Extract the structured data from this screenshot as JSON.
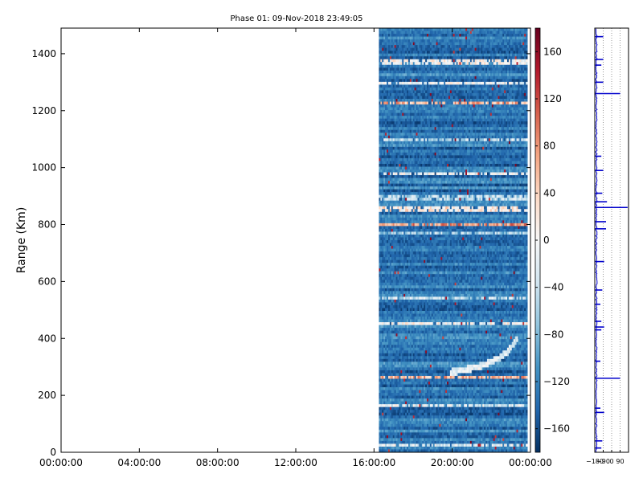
{
  "chart_data": [
    {
      "type": "heatmap",
      "title": "Phase 01: 09-Nov-2018 23:49:05",
      "xlabel": "",
      "ylabel": "Range (Km)",
      "x_ticks": [
        "00:00:00",
        "04:00:00",
        "08:00:00",
        "12:00:00",
        "16:00:00",
        "20:00:00",
        "00:00:00"
      ],
      "xlim_hours": [
        0,
        24
      ],
      "data_start_hour": 16.25,
      "ylim": [
        0,
        1490
      ],
      "y_ticks": [
        0,
        200,
        400,
        600,
        800,
        1000,
        1200,
        1400
      ],
      "colormap": "RdBu_r",
      "baseline_value": -130,
      "colorbar": {
        "range": [
          -180,
          180
        ],
        "ticks": [
          -160,
          -120,
          -80,
          -40,
          0,
          40,
          80,
          120,
          160
        ],
        "tick_labels": [
          "−160",
          "−120",
          "−80",
          "−40",
          "0",
          "40",
          "80",
          "120",
          "160"
        ],
        "colors": [
          "#053061",
          "#2166ac",
          "#4393c3",
          "#92c5de",
          "#d1e5f0",
          "#f7f7f7",
          "#fddbc7",
          "#f4a582",
          "#d6604d",
          "#b2182b",
          "#67001f"
        ]
      },
      "bands": [
        {
          "range_km": 1370,
          "value": 0
        },
        {
          "range_km": 1295,
          "value": -10
        },
        {
          "range_km": 1230,
          "value": 60
        },
        {
          "range_km": 1095,
          "value": -40
        },
        {
          "range_km": 980,
          "value": -10
        },
        {
          "range_km": 895,
          "value": -50
        },
        {
          "range_km": 855,
          "value": 20
        },
        {
          "range_km": 800,
          "value": 80
        },
        {
          "range_km": 770,
          "value": -60
        },
        {
          "range_km": 540,
          "value": -40
        },
        {
          "range_km": 455,
          "value": 0
        },
        {
          "range_km": 265,
          "value": 60
        },
        {
          "range_km": 160,
          "value": -20
        },
        {
          "range_km": 25,
          "value": -20
        }
      ],
      "echo_streak": [
        {
          "x_hour": 20.0,
          "range_km": 280
        },
        {
          "x_hour": 21.5,
          "range_km": 300
        },
        {
          "x_hour": 22.5,
          "range_km": 330
        },
        {
          "x_hour": 23.0,
          "range_km": 355
        },
        {
          "x_hour": 23.5,
          "range_km": 400
        }
      ]
    },
    {
      "type": "line",
      "x_ticks": [
        "−180",
        "−90",
        "0",
        "90"
      ],
      "xlim": [
        -180,
        180
      ],
      "ylim": [
        0,
        1490
      ],
      "series_color": "#0000cc",
      "spikes": [
        {
          "range_km": 1460,
          "value": -90
        },
        {
          "range_km": 1380,
          "value": -90
        },
        {
          "range_km": 1360,
          "value": -110
        },
        {
          "range_km": 1300,
          "value": -90
        },
        {
          "range_km": 1260,
          "value": 90
        },
        {
          "range_km": 1040,
          "value": -110
        },
        {
          "range_km": 990,
          "value": -90
        },
        {
          "range_km": 910,
          "value": -100
        },
        {
          "range_km": 880,
          "value": -50
        },
        {
          "range_km": 860,
          "value": 170
        },
        {
          "range_km": 810,
          "value": -60
        },
        {
          "range_km": 785,
          "value": -60
        },
        {
          "range_km": 670,
          "value": -80
        },
        {
          "range_km": 570,
          "value": -100
        },
        {
          "range_km": 520,
          "value": -120
        },
        {
          "range_km": 460,
          "value": -110
        },
        {
          "range_km": 440,
          "value": -80
        },
        {
          "range_km": 430,
          "value": -110
        },
        {
          "range_km": 320,
          "value": -120
        },
        {
          "range_km": 260,
          "value": 90
        },
        {
          "range_km": 155,
          "value": -120
        },
        {
          "range_km": 140,
          "value": -80
        },
        {
          "range_km": 40,
          "value": -100
        },
        {
          "range_km": 15,
          "value": -110
        }
      ]
    }
  ]
}
